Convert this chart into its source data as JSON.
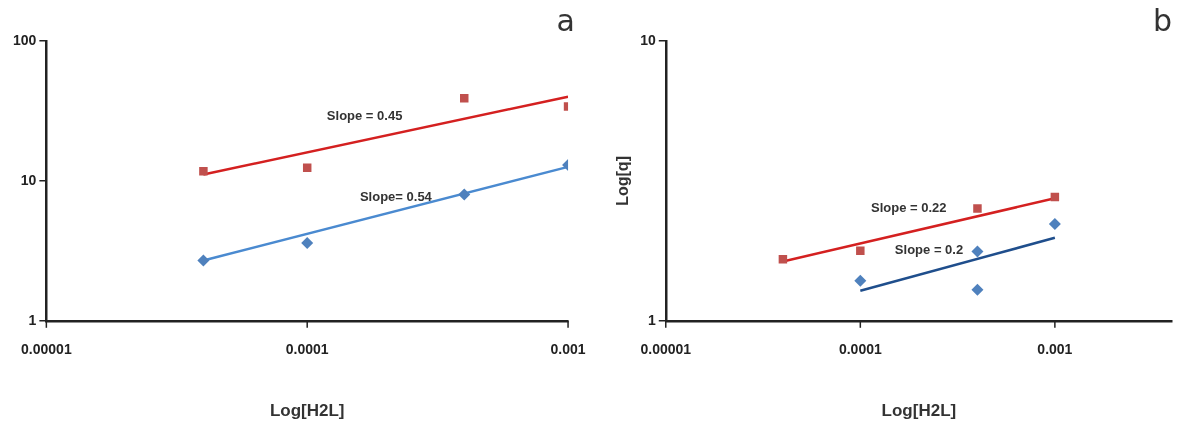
{
  "chart_data": [
    {
      "type": "scatter",
      "title": "a",
      "xlabel": "Log[H2L]",
      "log": "xy",
      "grid": false,
      "legend": false,
      "xlim": [
        1e-05,
        0.001
      ],
      "xticks": [
        {
          "value": 1e-05,
          "label": "0.00001"
        },
        {
          "value": 0.0001,
          "label": "0.0001"
        },
        {
          "value": 0.001,
          "label": "0.001"
        }
      ],
      "ylim": [
        1,
        100
      ],
      "yticks": [
        1,
        10,
        100
      ],
      "series": [
        {
          "type": "scatter",
          "marker": "square",
          "color": "#c0504d",
          "x": [
            4e-05,
            0.0001,
            0.0004,
            0.001
          ],
          "values": [
            11.7,
            12.4,
            39,
            34
          ]
        },
        {
          "type": "scatter",
          "marker": "diamond",
          "color": "#4f81bd",
          "x": [
            4e-05,
            0.0001,
            0.0004,
            0.001
          ],
          "values": [
            2.7,
            3.6,
            8,
            13
          ]
        },
        {
          "type": "line",
          "marker": "none",
          "color": "#d42020",
          "x": [
            4e-05,
            0.001
          ],
          "values": [
            11.1,
            40
          ]
        },
        {
          "type": "line",
          "marker": "none",
          "color": "#4a8ad0",
          "x": [
            4e-05,
            0.001
          ],
          "values": [
            2.7,
            12.6
          ]
        }
      ],
      "annotations": [
        "Slope = 0.45",
        "Slope= 0.54"
      ]
    },
    {
      "type": "scatter",
      "title": "b",
      "xlabel": "Log[H2L]",
      "ylabel": "Log[q]",
      "log": "xy",
      "grid": false,
      "legend": false,
      "xlim": [
        1e-05,
        0.004
      ],
      "xticks": [
        {
          "value": 1e-05,
          "label": "0.00001"
        },
        {
          "value": 0.0001,
          "label": "0.0001"
        },
        {
          "value": 0.001,
          "label": "0.001"
        }
      ],
      "ylim": [
        1,
        10
      ],
      "yticks": [
        1,
        10
      ],
      "series": [
        {
          "type": "scatter",
          "marker": "square",
          "color": "#c0504d",
          "x": [
            4e-05,
            0.0001,
            0.0004,
            0.001
          ],
          "values": [
            1.66,
            1.78,
            2.52,
            2.77
          ]
        },
        {
          "type": "scatter",
          "marker": "diamond",
          "color": "#4f81bd",
          "x": [
            0.0001,
            0.0004,
            0.0004,
            0.001
          ],
          "values": [
            1.39,
            1.77,
            1.29,
            2.22
          ]
        },
        {
          "type": "line",
          "marker": "none",
          "color": "#d42020",
          "x": [
            4e-05,
            0.001
          ],
          "values": [
            1.63,
            2.74
          ]
        },
        {
          "type": "line",
          "marker": "none",
          "color": "#1f4e8c",
          "x": [
            0.0001,
            0.001
          ],
          "values": [
            1.28,
            1.98
          ]
        }
      ],
      "annotations": [
        "Slope = 0.22",
        "Slope = 0.2"
      ]
    }
  ]
}
